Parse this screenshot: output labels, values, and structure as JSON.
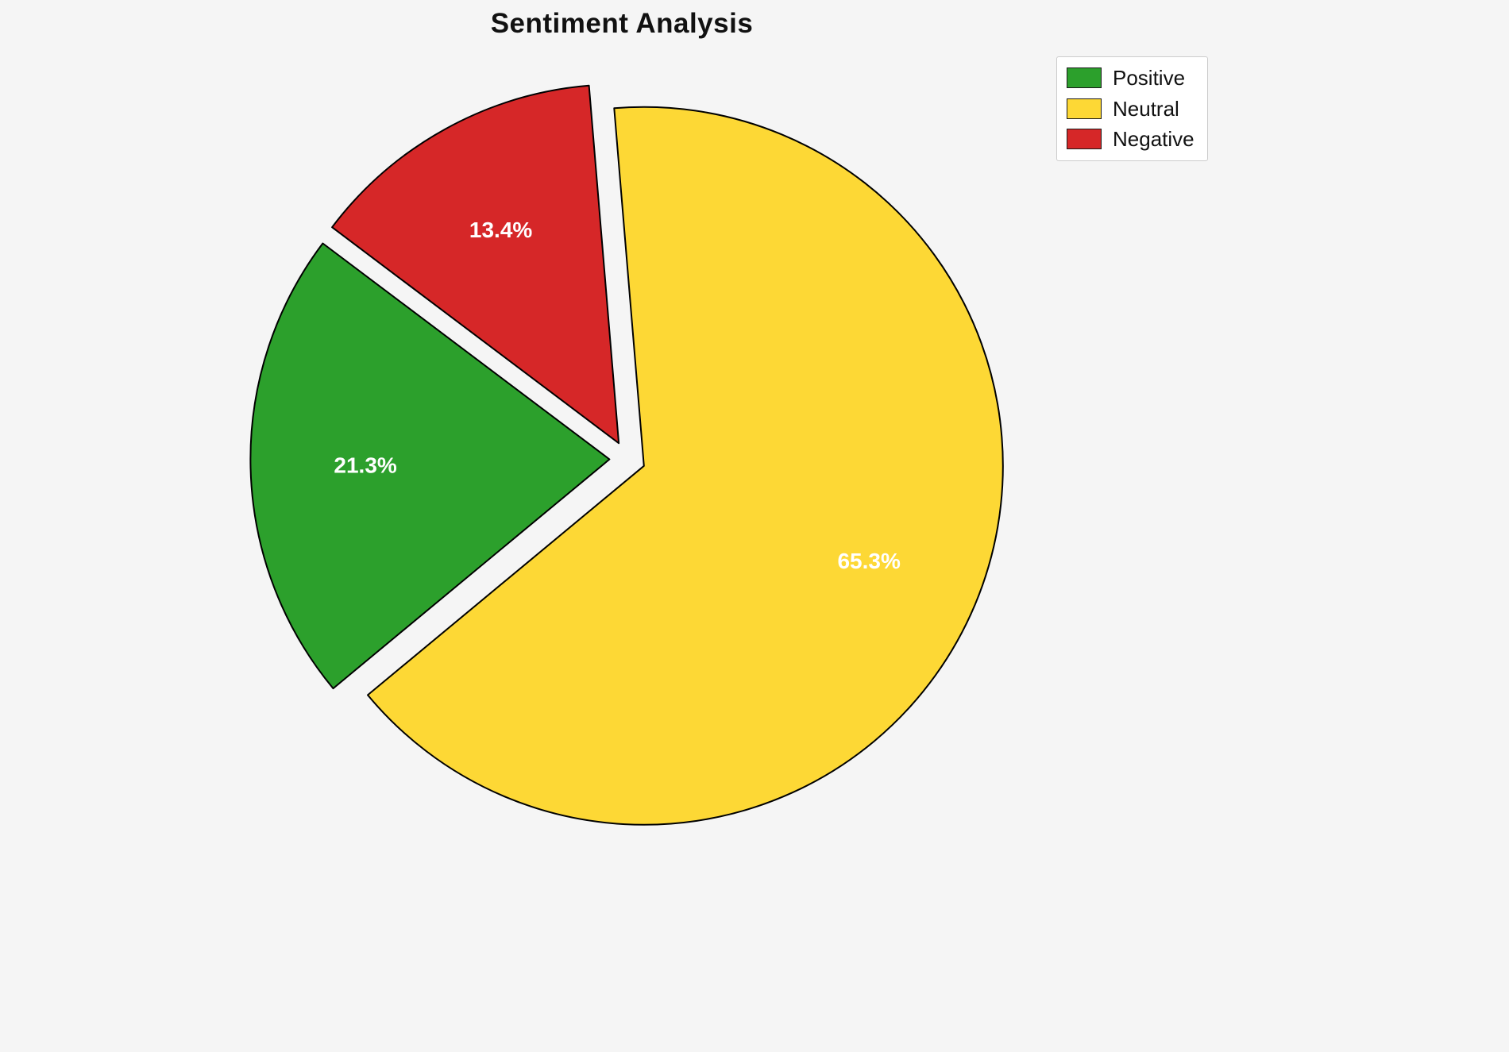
{
  "title": "Sentiment Analysis",
  "chart_data": {
    "type": "pie",
    "title": "Sentiment Analysis",
    "slices": [
      {
        "label": "Positive",
        "value": 21.3,
        "display": "21.3%",
        "color": "#2ca02c"
      },
      {
        "label": "Neutral",
        "value": 65.3,
        "display": "65.3%",
        "color": "#fdd835"
      },
      {
        "label": "Negative",
        "value": 13.4,
        "display": "13.4%",
        "color": "#d62728"
      }
    ],
    "legend": {
      "position": "upper right",
      "entries": [
        "Positive",
        "Neutral",
        "Negative"
      ]
    },
    "start_angle": 143,
    "explode": 0.05,
    "label_distance": 0.68,
    "edge_color": "#000000",
    "background": "#f5f5f5"
  }
}
